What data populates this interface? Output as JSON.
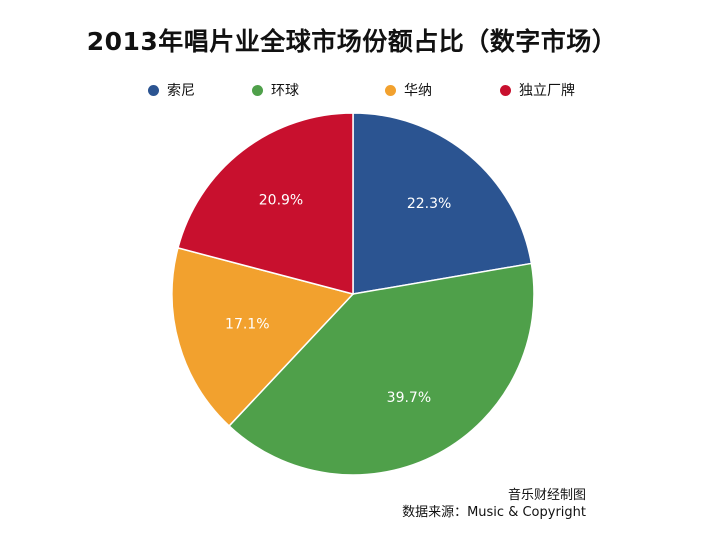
{
  "chart_data": {
    "type": "pie",
    "title": "2013年唱片业全球市场份额占比（数字市场）",
    "categories": [
      "索尼",
      "环球",
      "华纳",
      "独立厂牌"
    ],
    "values": [
      22.3,
      39.7,
      17.1,
      20.9
    ],
    "value_labels": [
      "22.3%",
      "39.7%",
      "17.1%",
      "20.9%"
    ],
    "colors": [
      "#2b5491",
      "#4fa04a",
      "#f2a12e",
      "#c8102e"
    ],
    "legend_position": "top",
    "start_angle": "12 o'clock",
    "direction": "clockwise"
  },
  "footer": {
    "credit": "音乐财经制图",
    "source": "数据来源：Music & Copyright"
  }
}
